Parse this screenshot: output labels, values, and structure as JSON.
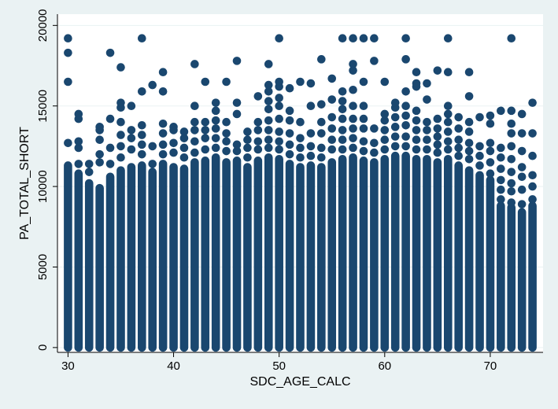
{
  "chart_data": {
    "type": "scatter",
    "xlabel": "SDC_AGE_CALC",
    "ylabel": "PA_TOTAL_SHORT",
    "xlim": [
      29,
      75
    ],
    "ylim": [
      -300,
      20700
    ],
    "x_ticks": [
      30,
      40,
      50,
      60,
      70
    ],
    "y_ticks": [
      0,
      5000,
      10000,
      15000,
      20000
    ],
    "grid": true,
    "marker_color": "#1a476f",
    "background_outer": "#eaf2f3",
    "background_plot": "#ffffff",
    "grid_color": "#eaf2f3",
    "columns": [
      {
        "age": 30,
        "dense_max": 11300,
        "outliers": [
          12700,
          16500,
          18300,
          19200
        ]
      },
      {
        "age": 31,
        "dense_max": 10800,
        "outliers": [
          11400,
          12400,
          12800,
          14200,
          14500
        ]
      },
      {
        "age": 32,
        "dense_max": 10200,
        "outliers": [
          10900,
          11400
        ]
      },
      {
        "age": 33,
        "dense_max": 9900,
        "outliers": [
          11500,
          12000,
          12900,
          13500,
          13700
        ]
      },
      {
        "age": 34,
        "dense_max": 10600,
        "outliers": [
          11400,
          12400,
          14200,
          18300
        ]
      },
      {
        "age": 35,
        "dense_max": 11000,
        "outliers": [
          11800,
          12500,
          13200,
          14000,
          14900,
          15200,
          17400
        ]
      },
      {
        "age": 36,
        "dense_max": 11200,
        "outliers": [
          12300,
          13000,
          13500,
          15000
        ]
      },
      {
        "age": 37,
        "dense_max": 11300,
        "outliers": [
          12000,
          12600,
          13200,
          13800,
          15900,
          19200
        ]
      },
      {
        "age": 38,
        "dense_max": 10900,
        "outliers": [
          11400,
          12500,
          16300
        ]
      },
      {
        "age": 39,
        "dense_max": 11400,
        "outliers": [
          12000,
          12600,
          13300,
          13900,
          15900,
          17100
        ]
      },
      {
        "age": 40,
        "dense_max": 11200,
        "outliers": [
          12100,
          12700,
          13500,
          13700
        ]
      },
      {
        "age": 41,
        "dense_max": 11100,
        "outliers": [
          11800,
          12400,
          13000,
          13400
        ]
      },
      {
        "age": 42,
        "dense_max": 11500,
        "outliers": [
          12100,
          12800,
          13500,
          14000,
          15000,
          17600
        ]
      },
      {
        "age": 43,
        "dense_max": 11600,
        "outliers": [
          12300,
          13000,
          13500,
          14000,
          16500
        ]
      },
      {
        "age": 44,
        "dense_max": 11800,
        "outliers": [
          12400,
          13000,
          13600,
          14100,
          14700,
          15200
        ]
      },
      {
        "age": 45,
        "dense_max": 11500,
        "outliers": [
          12200,
          12800,
          13300,
          14000,
          16500
        ]
      },
      {
        "age": 46,
        "dense_max": 11600,
        "outliers": [
          12200,
          12600,
          14500,
          15200,
          17800
        ]
      },
      {
        "age": 47,
        "dense_max": 11200,
        "outliers": [
          11800,
          12400,
          12900,
          13400
        ]
      },
      {
        "age": 48,
        "dense_max": 11600,
        "outliers": [
          12300,
          12800,
          13500,
          14000,
          15600
        ]
      },
      {
        "age": 49,
        "dense_max": 11800,
        "outliers": [
          12400,
          12900,
          13500,
          14100,
          14800,
          15300,
          15900,
          16300,
          17600
        ]
      },
      {
        "age": 50,
        "dense_max": 11700,
        "outliers": [
          12300,
          12800,
          13400,
          14200,
          15000,
          15500,
          16200,
          16500,
          19200
        ]
      },
      {
        "age": 51,
        "dense_max": 11400,
        "outliers": [
          12000,
          12600,
          13300,
          14100,
          14700,
          16100
        ]
      },
      {
        "age": 52,
        "dense_max": 11200,
        "outliers": [
          11800,
          12400,
          13000,
          14000,
          16500
        ]
      },
      {
        "age": 53,
        "dense_max": 11300,
        "outliers": [
          11900,
          12500,
          13300,
          15000,
          16400
        ]
      },
      {
        "age": 54,
        "dense_max": 11200,
        "outliers": [
          11800,
          12400,
          13300,
          14000,
          15100,
          17900
        ]
      },
      {
        "age": 55,
        "dense_max": 11500,
        "outliers": [
          12300,
          12900,
          13600,
          14300,
          15400,
          16700
        ]
      },
      {
        "age": 56,
        "dense_max": 11700,
        "outliers": [
          12300,
          12900,
          13500,
          14200,
          14800,
          15300,
          15900,
          19200
        ]
      },
      {
        "age": 57,
        "dense_max": 11800,
        "outliers": [
          12400,
          13000,
          13600,
          14200,
          15000,
          16000,
          17200,
          17600,
          19200
        ]
      },
      {
        "age": 58,
        "dense_max": 11600,
        "outliers": [
          12200,
          12800,
          13600,
          14200,
          15000,
          16500,
          19200
        ]
      },
      {
        "age": 59,
        "dense_max": 11500,
        "outliers": [
          12100,
          12700,
          13600,
          17800,
          19200
        ]
      },
      {
        "age": 60,
        "dense_max": 11700,
        "outliers": [
          12300,
          12900,
          13500,
          14100,
          14500,
          16500
        ]
      },
      {
        "age": 61,
        "dense_max": 11900,
        "outliers": [
          12500,
          13100,
          13700,
          14300,
          14900,
          15200
        ]
      },
      {
        "age": 62,
        "dense_max": 11900,
        "outliers": [
          12500,
          13100,
          13800,
          14400,
          15000,
          15900,
          17900,
          19200
        ]
      },
      {
        "age": 63,
        "dense_max": 11700,
        "outliers": [
          12300,
          12900,
          13500,
          14100,
          14700,
          16200,
          16400,
          17100
        ]
      },
      {
        "age": 64,
        "dense_max": 11700,
        "outliers": [
          12300,
          12900,
          13500,
          14000,
          15400,
          16400
        ]
      },
      {
        "age": 65,
        "dense_max": 11500,
        "outliers": [
          12100,
          12600,
          13100,
          13600,
          14200,
          17200
        ]
      },
      {
        "age": 66,
        "dense_max": 11700,
        "outliers": [
          12300,
          12800,
          13400,
          14000,
          14500,
          15000,
          17100,
          19200
        ]
      },
      {
        "age": 67,
        "dense_max": 11300,
        "outliers": [
          11900,
          12400,
          12900,
          13600,
          14300
        ]
      },
      {
        "age": 68,
        "dense_max": 11000,
        "outliers": [
          11700,
          12200,
          12700,
          13400,
          14000,
          15600,
          17100
        ]
      },
      {
        "age": 69,
        "dense_max": 10700,
        "outliers": [
          11300,
          11900,
          12500,
          14300
        ]
      },
      {
        "age": 70,
        "dense_max": 10400,
        "outliers": [
          10800,
          11500,
          12200,
          12700,
          13900,
          14400
        ]
      },
      {
        "age": 71,
        "dense_max": 8800,
        "outliers": [
          9200,
          9800,
          10400,
          11100,
          11800,
          12400,
          14700
        ]
      },
      {
        "age": 72,
        "dense_max": 8700,
        "outliers": [
          9000,
          9700,
          10200,
          10900,
          11700,
          12500,
          13300,
          13900,
          14700,
          19200
        ]
      },
      {
        "age": 73,
        "dense_max": 8400,
        "outliers": [
          8900,
          9800,
          10600,
          11200,
          12200,
          13300,
          14500
        ]
      },
      {
        "age": 74,
        "dense_max": 8800,
        "outliers": [
          9200,
          10000,
          10700,
          11900,
          13300,
          15200
        ]
      }
    ]
  }
}
